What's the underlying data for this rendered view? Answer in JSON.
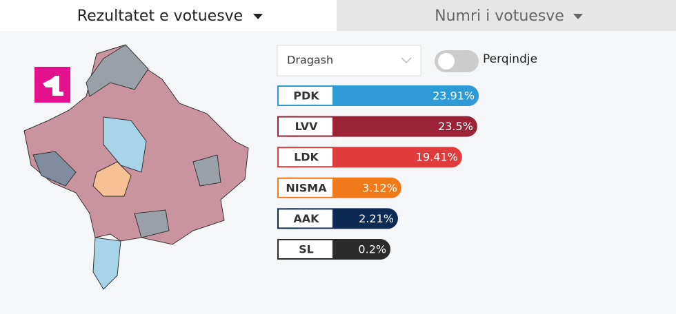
{
  "tabs": [
    "Rezultatet e votuesve",
    "Numri i votuesve"
  ],
  "dropdown": "Dragash",
  "toggle_label": "Perqindje",
  "chart_data": {
    "type": "bar",
    "orientation": "horizontal",
    "categories": [
      "PDK",
      "LVV",
      "LDK",
      "NISMA",
      "AAK",
      "SL"
    ],
    "values": [
      23.91,
      23.5,
      19.41,
      3.12,
      2.21,
      0.2
    ],
    "value_labels": [
      "23.91%",
      "23.5%",
      "19.41%",
      "3.12%",
      "2.21%",
      "0.2%"
    ],
    "colors": [
      "#2e9bd6",
      "#9b2335",
      "#e03c3c",
      "#f07a1a",
      "#0d2a54",
      "#2b2b2b"
    ]
  }
}
